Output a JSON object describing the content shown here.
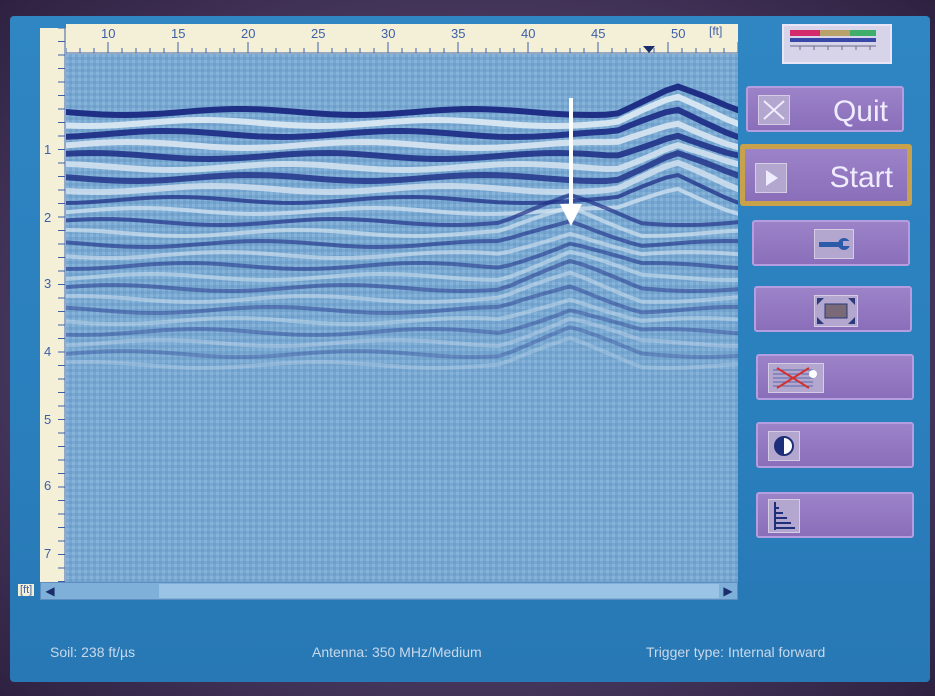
{
  "ruler": {
    "unit": "[ft]",
    "horizontal_ticks": [
      "10",
      "15",
      "20",
      "25",
      "30",
      "35",
      "40",
      "45",
      "50"
    ],
    "vertical_ticks": [
      "1",
      "2",
      "3",
      "4",
      "5",
      "6",
      "7"
    ]
  },
  "buttons": {
    "quit_label": "Quit",
    "start_label": "Start"
  },
  "icons": {
    "quit": "close-x-icon",
    "start": "play-icon",
    "settings": "wrench-icon",
    "fullscreen": "expand-icon",
    "filter": "filter-icon",
    "contrast": "contrast-icon",
    "gain": "gain-bars-icon",
    "battery": "battery-icon"
  },
  "status": {
    "soil": "Soil:  238 ft/µs",
    "antenna": "Antenna: 350 MHz/Medium",
    "trigger": "Trigger type: Internal forward"
  },
  "colors": {
    "screen_bg": "#2a7fbd",
    "button_bg": "#8a6eba",
    "start_border": "#c8a24a",
    "band_dark": "#1f2f86",
    "band_light": "#d8e6f2"
  }
}
